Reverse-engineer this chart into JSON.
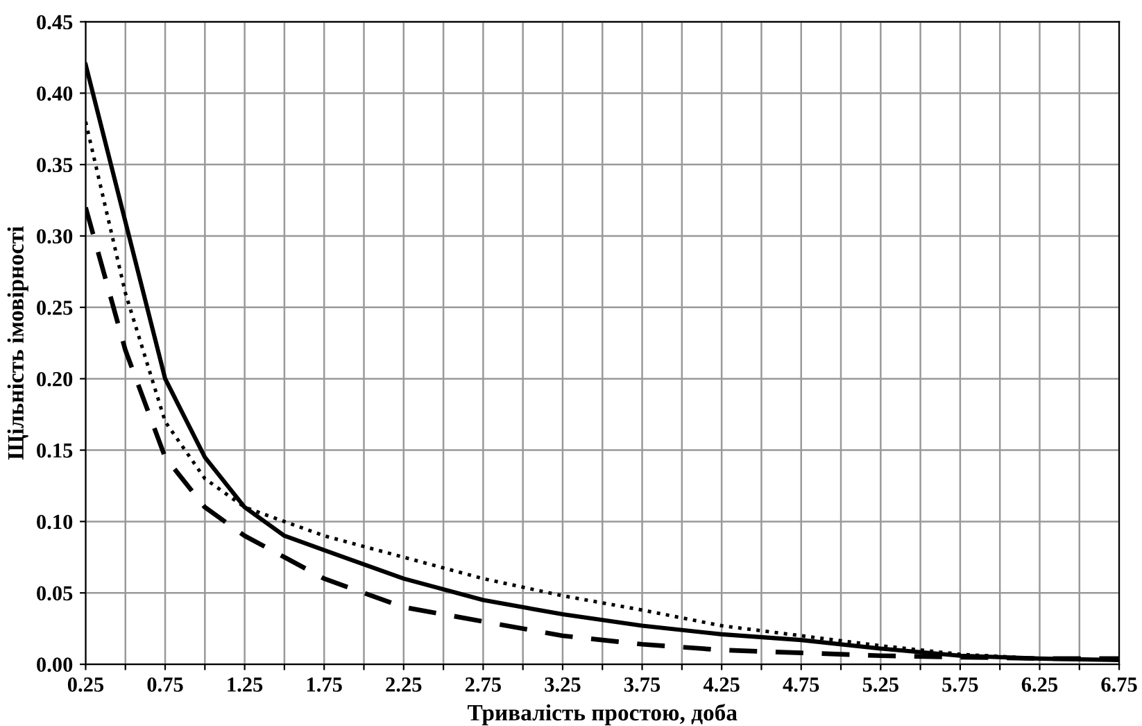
{
  "chart_data": {
    "type": "line",
    "xlabel": "Тривалість простою, доба",
    "ylabel": "Щільність імовірності",
    "x": [
      0.25,
      0.5,
      0.75,
      1.0,
      1.25,
      1.5,
      1.75,
      2.25,
      2.75,
      3.25,
      3.75,
      4.25,
      4.75,
      5.25,
      5.75,
      6.25,
      6.75
    ],
    "series": [
      {
        "color": "#000000",
        "line_style": "solid",
        "values": [
          0.42,
          0.31,
          0.2,
          0.145,
          0.11,
          0.09,
          0.08,
          0.06,
          0.045,
          0.035,
          0.027,
          0.021,
          0.017,
          0.011,
          0.006,
          0.004,
          0.003
        ]
      },
      {
        "color": "#000000",
        "line_style": "dotted",
        "values": [
          0.38,
          0.26,
          0.17,
          0.13,
          0.11,
          0.1,
          0.09,
          0.075,
          0.06,
          0.048,
          0.038,
          0.027,
          0.02,
          0.013,
          0.007,
          0.004,
          0.003
        ]
      },
      {
        "color": "#000000",
        "line_style": "dashed",
        "values": [
          0.32,
          0.22,
          0.145,
          0.11,
          0.09,
          0.075,
          0.06,
          0.04,
          0.03,
          0.02,
          0.014,
          0.01,
          0.008,
          0.006,
          0.005,
          0.004,
          0.004
        ]
      }
    ],
    "xlim": [
      0.25,
      6.75
    ],
    "xticks": [
      0.25,
      {
        "value": 0.5,
        "label": null
      },
      0.75,
      {
        "value": 1.0,
        "label": null
      },
      1.25,
      {
        "value": 1.5,
        "label": null
      },
      1.75,
      {
        "value": 2.0,
        "label": null
      },
      2.25,
      {
        "value": 2.5,
        "label": null
      },
      2.75,
      {
        "value": 3.0,
        "label": null
      },
      3.25,
      {
        "value": 3.5,
        "label": null
      },
      3.75,
      {
        "value": 4.0,
        "label": null
      },
      4.25,
      {
        "value": 4.5,
        "label": null
      },
      4.75,
      {
        "value": 5.0,
        "label": null
      },
      5.25,
      {
        "value": 5.5,
        "label": null
      },
      5.75,
      {
        "value": 6.0,
        "label": null
      },
      6.25,
      {
        "value": 6.5,
        "label": null
      },
      6.75
    ],
    "ylim": [
      0,
      0.45
    ],
    "yticks": [
      {
        "value": 0,
        "label": "0.00"
      },
      {
        "value": 0.05,
        "label": "0.05"
      },
      {
        "value": 0.1,
        "label": "0.10"
      },
      {
        "value": 0.15,
        "label": "0.15"
      },
      {
        "value": 0.2,
        "label": "0.20"
      },
      {
        "value": 0.25,
        "label": "0.25"
      },
      {
        "value": 0.3,
        "label": "0.30"
      },
      {
        "value": 0.35,
        "label": "0.35"
      },
      {
        "value": 0.4,
        "label": "0.40"
      },
      {
        "value": 0.45,
        "label": "0.45"
      }
    ],
    "grid": true
  }
}
